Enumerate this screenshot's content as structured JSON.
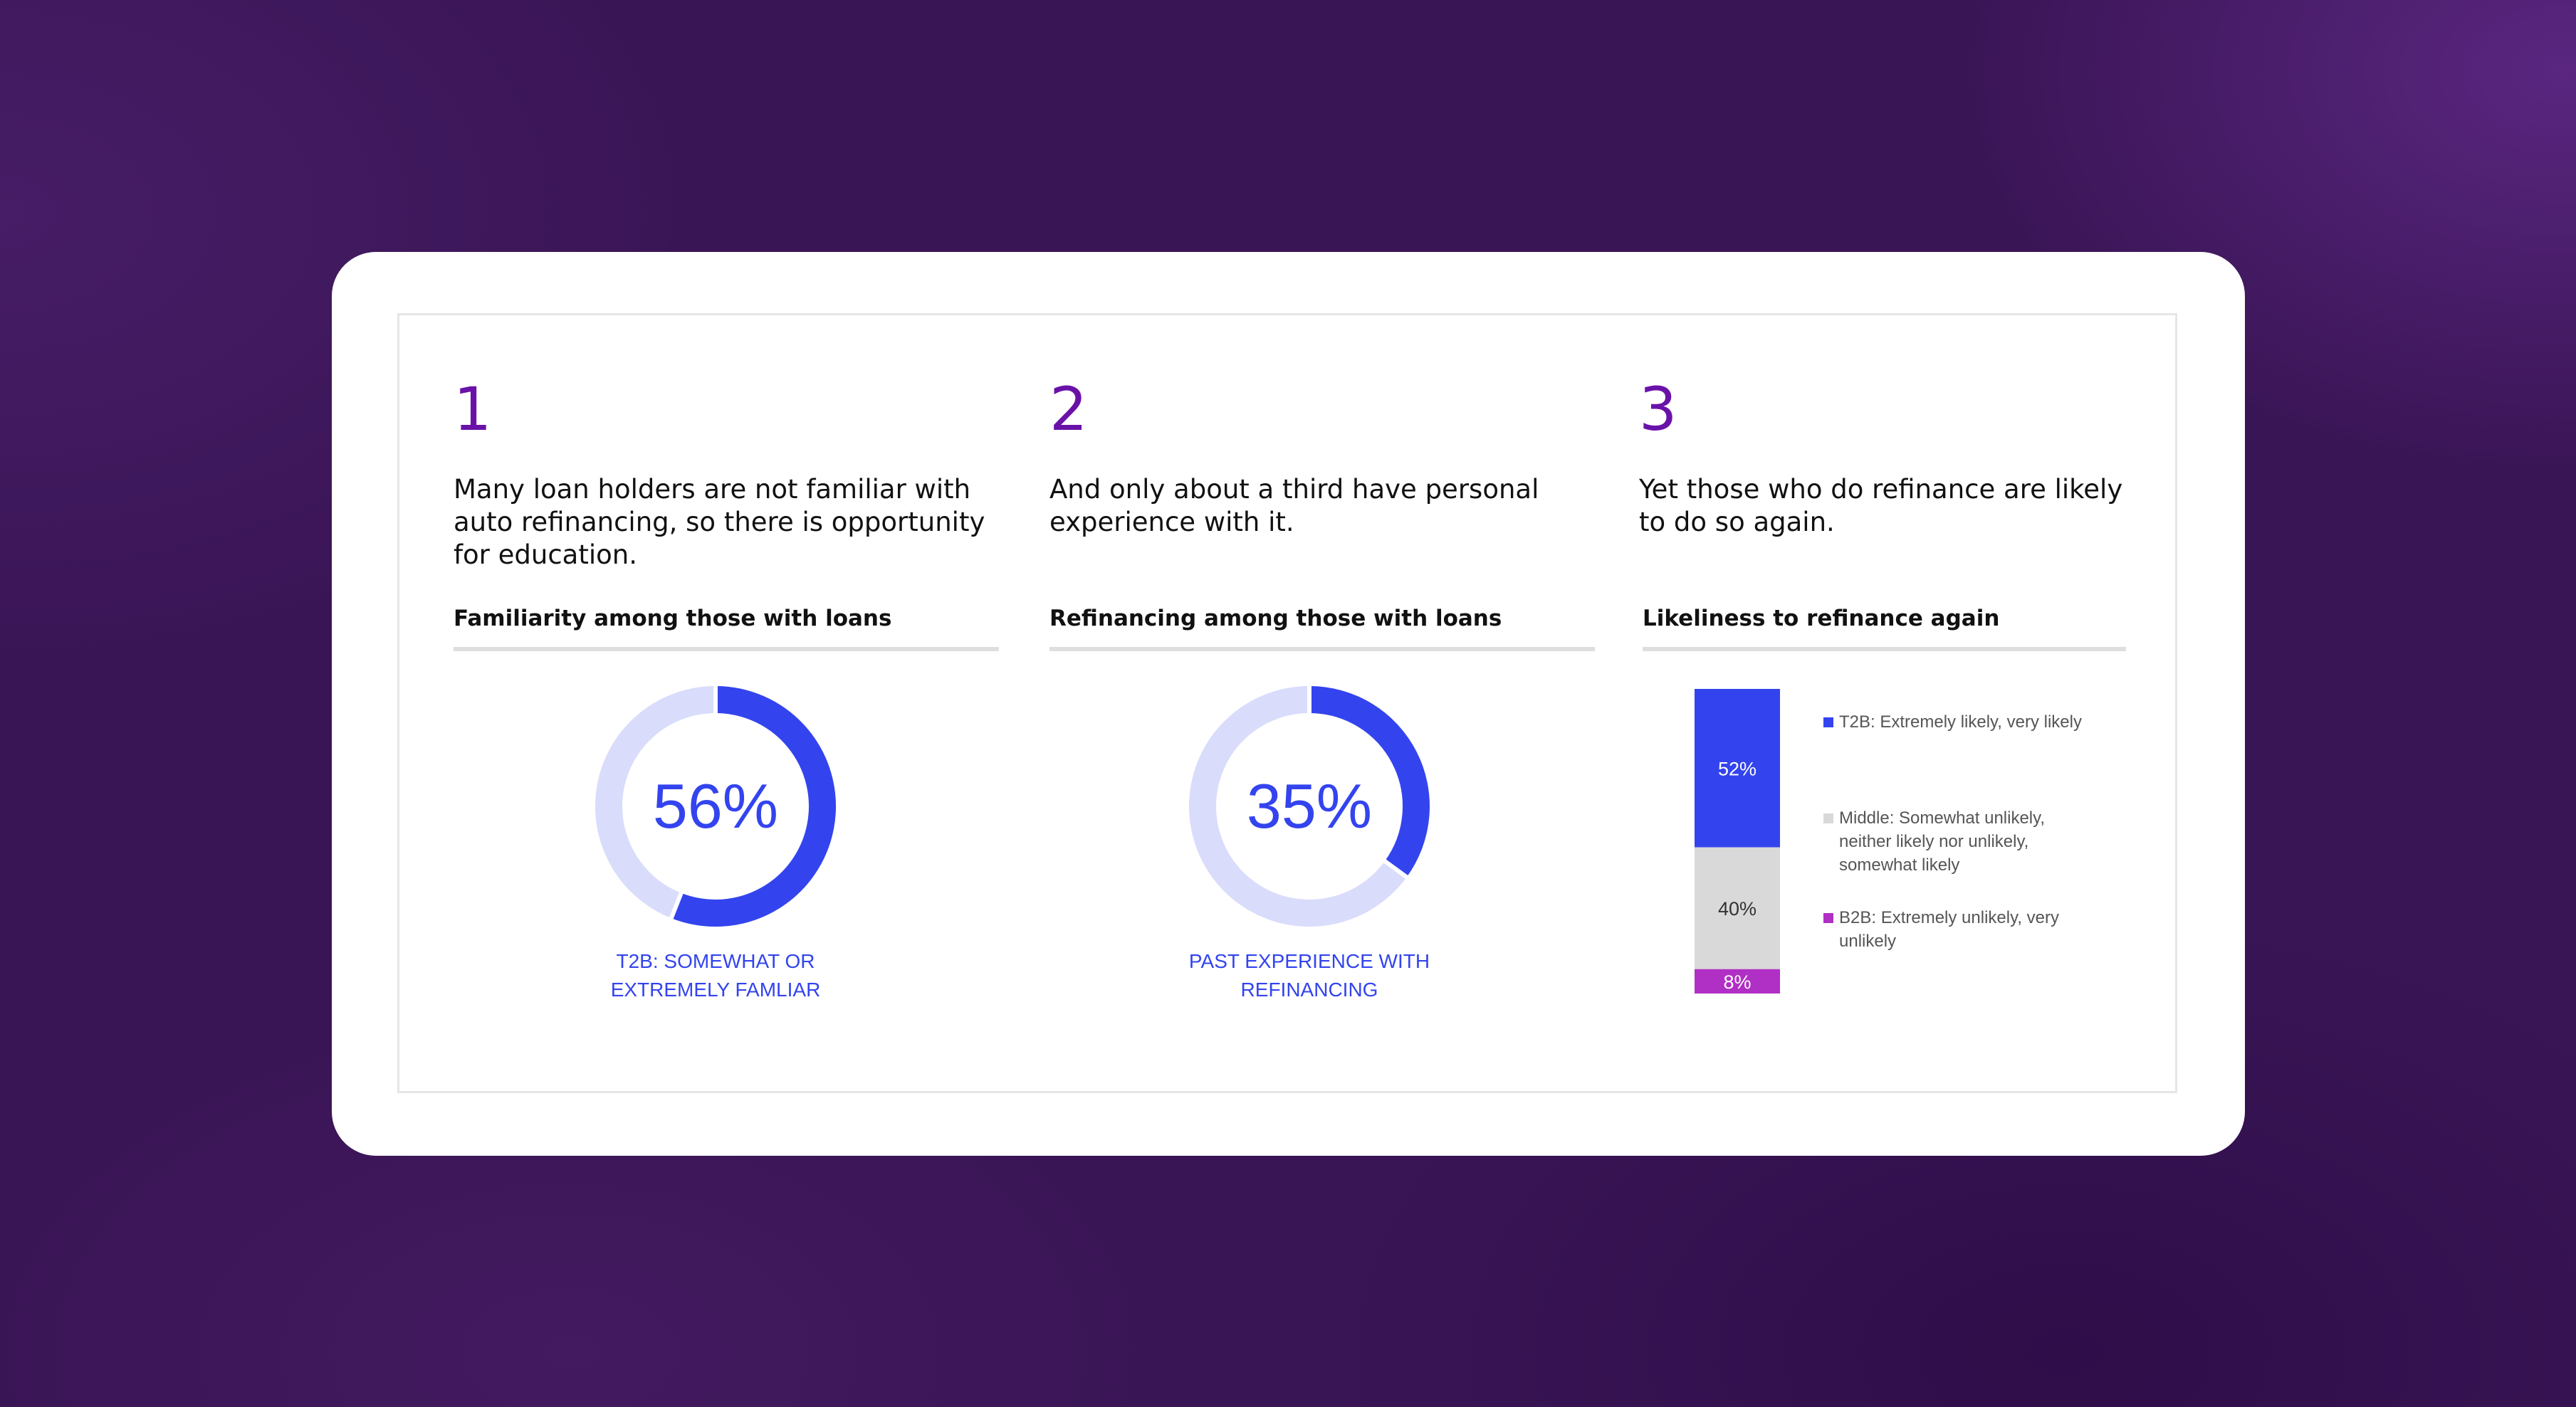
{
  "panels": [
    {
      "number": "1",
      "headline": "Many loan holders are not familiar with auto refinancing, so there is opportunity for education.",
      "subtitle": "Familiarity among those with loans",
      "donut_value_label": "56%",
      "donut_caption": "T2B: SOMEWHAT OR\nEXTREMELY FAMLIAR"
    },
    {
      "number": "2",
      "headline": "And only about a third have personal experience with it.",
      "subtitle": "Refinancing among those with loans",
      "donut_value_label": "35%",
      "donut_caption": "PAST EXPERIENCE WITH\nREFINANCING"
    },
    {
      "number": "3",
      "headline": "Yet those who do refinance are likely to do so again.",
      "subtitle": "Likeliness to refinance again"
    }
  ],
  "colors": {
    "accent": "#3344ee",
    "track": "#d9dcfb",
    "middle": "#d9d9d9",
    "b2b": "#b02fc4",
    "number": "#6a12a8"
  },
  "chart_data": [
    {
      "type": "pie",
      "values": [
        56,
        44
      ],
      "categories": [
        "T2B: SOMEWHAT OR EXTREMELY FAMLIAR",
        ""
      ]
    },
    {
      "type": "pie",
      "values": [
        35,
        65
      ],
      "categories": [
        "PAST EXPERIENCE WITH REFINANCING",
        ""
      ]
    },
    {
      "type": "bar",
      "stacked": true,
      "categories": [
        ""
      ],
      "series": [
        {
          "name": "T2B: Extremely likely, very likely",
          "values": [
            52
          ],
          "label": "52%"
        },
        {
          "name": "Middle: Somewhat unlikely, neither likely nor unlikely, somewhat likely",
          "values": [
            40
          ],
          "label": "40%"
        },
        {
          "name": "B2B: Extremely unlikely, very unlikely",
          "values": [
            8
          ],
          "label": "8%"
        }
      ],
      "ylim": [
        0,
        100
      ]
    }
  ]
}
